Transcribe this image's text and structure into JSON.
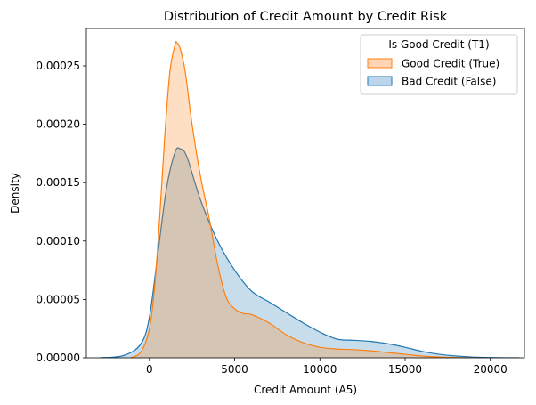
{
  "chart_data": {
    "type": "area",
    "title": "Distribution of Credit Amount by Credit Risk",
    "xlabel": "Credit Amount (A5)",
    "ylabel": "Density",
    "xlim": [
      -3700,
      22000
    ],
    "ylim": [
      0,
      0.000282
    ],
    "x_ticks": [
      {
        "value": 0,
        "label": "0"
      },
      {
        "value": 5000,
        "label": "5000"
      },
      {
        "value": 10000,
        "label": "10000"
      },
      {
        "value": 15000,
        "label": "15000"
      },
      {
        "value": 20000,
        "label": "20000"
      }
    ],
    "y_ticks": [
      {
        "value": 0,
        "label": "0.00000"
      },
      {
        "value": 5e-05,
        "label": "0.00005"
      },
      {
        "value": 0.0001,
        "label": "0.00010"
      },
      {
        "value": 0.00015,
        "label": "0.00015"
      },
      {
        "value": 0.0002,
        "label": "0.00020"
      },
      {
        "value": 0.00025,
        "label": "0.00025"
      }
    ],
    "grid": false,
    "legend": {
      "title": "Is Good Credit (T1)",
      "placement": "top-right"
    },
    "series": [
      {
        "name": "Bad Credit (False)",
        "color": "#1f77b4",
        "fill": "#bcd5ec",
        "x": [
          -2900,
          -1500,
          -500,
          0,
          500,
          1000,
          1500,
          1800,
          2200,
          3000,
          4000,
          5000,
          6000,
          7000,
          8000,
          9000,
          10000,
          11000,
          12000,
          13000,
          14000,
          15000,
          16000,
          17000,
          18000,
          19000,
          20000,
          21000,
          21700
        ],
        "y": [
          0,
          2e-06,
          1.2e-05,
          3.5e-05,
          9e-05,
          0.000145,
          0.000176,
          0.000179,
          0.000172,
          0.000135,
          0.0001,
          7.5e-05,
          5.7e-05,
          4.8e-05,
          3.9e-05,
          3e-05,
          2.2e-05,
          1.6e-05,
          1.5e-05,
          1.4e-05,
          1.2e-05,
          9e-06,
          5.5e-06,
          3e-06,
          1.5e-06,
          6e-07,
          2e-07,
          5e-08,
          0
        ]
      },
      {
        "name": "Good Credit (True)",
        "color": "#ff7f0e",
        "fill": "#ffd5b5",
        "x": [
          -1100,
          -500,
          0,
          300,
          600,
          900,
          1200,
          1500,
          1600,
          1800,
          2100,
          2500,
          3000,
          3500,
          4000,
          4500,
          5000,
          5500,
          6000,
          7000,
          8000,
          9000,
          10000,
          11000,
          12000,
          13000,
          14000,
          15000,
          16000,
          17000,
          18000,
          19200
        ],
        "y": [
          0,
          5e-06,
          2.5e-05,
          6e-05,
          0.00012,
          0.00019,
          0.000245,
          0.000268,
          0.00027,
          0.000265,
          0.000245,
          0.0002,
          0.000155,
          0.00012,
          8e-05,
          5.2e-05,
          4.2e-05,
          3.8e-05,
          3.7e-05,
          3e-05,
          2e-05,
          1.3e-05,
          9e-06,
          7.5e-06,
          7e-06,
          6e-06,
          4.5e-06,
          3e-06,
          1.5e-06,
          7e-07,
          2e-07,
          0
        ]
      }
    ]
  }
}
